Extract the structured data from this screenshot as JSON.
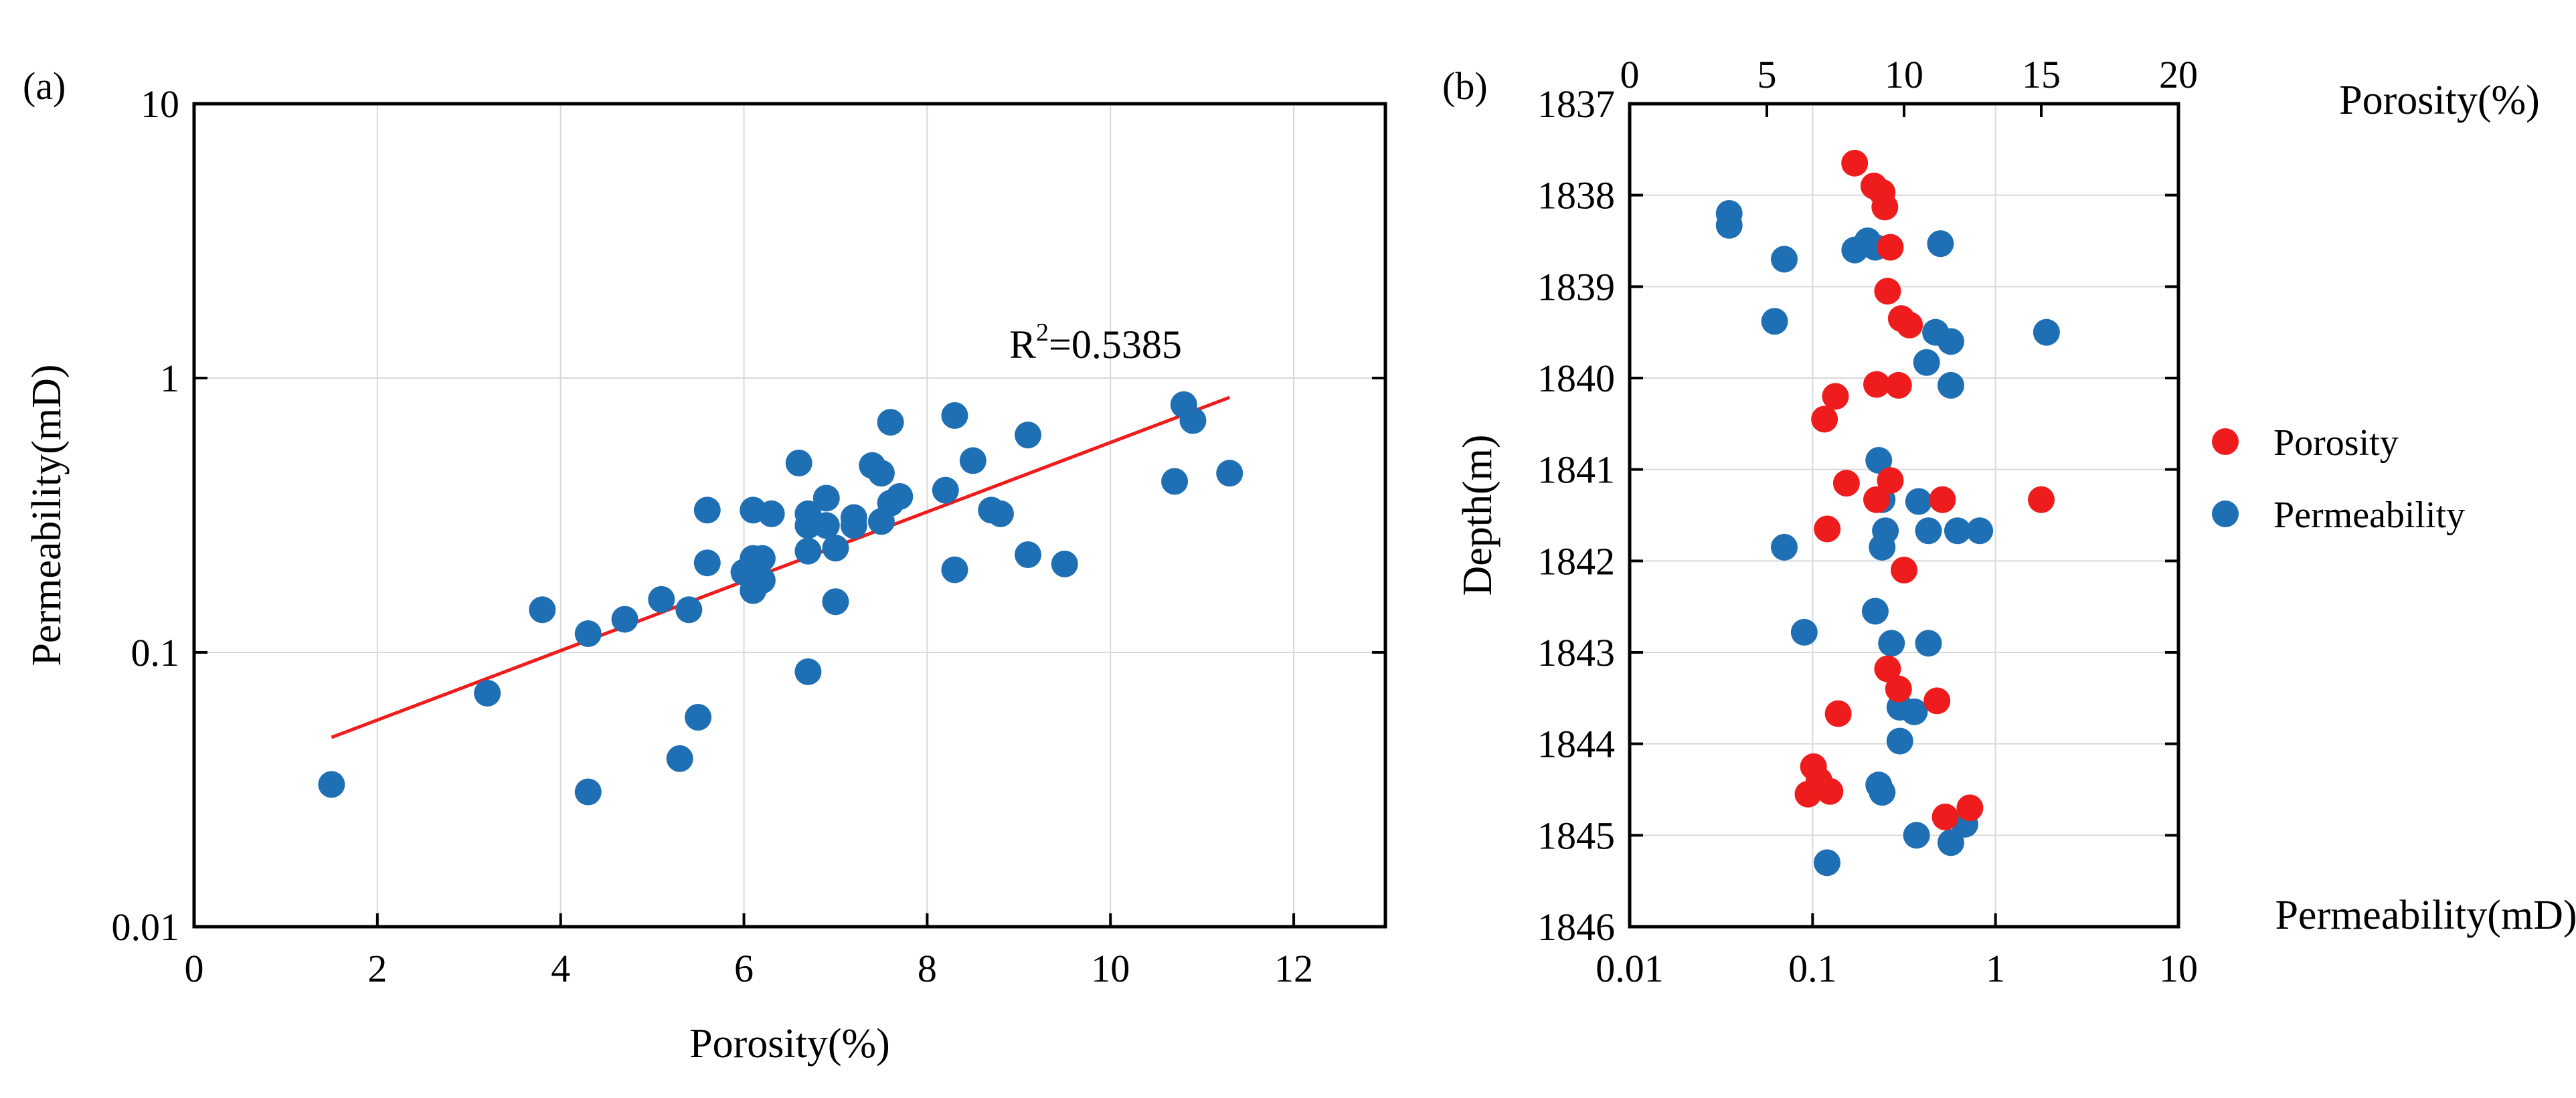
{
  "chart_data": [
    {
      "panel_label": "(a)",
      "type": "scatter",
      "xlabel": "Porosity(%)",
      "ylabel": "Permeability(mD)",
      "xlim": [
        0,
        13
      ],
      "ylim": [
        0.01,
        10
      ],
      "yscale": "log",
      "xticks": [
        0,
        2,
        4,
        6,
        8,
        10,
        12
      ],
      "xtick_labels": [
        "0",
        "2",
        "4",
        "6",
        "8",
        "10",
        "12"
      ],
      "yticks": [
        0.01,
        0.1,
        1,
        10
      ],
      "ytick_labels": [
        "0.01",
        "0.1",
        "1",
        "10"
      ],
      "grid": true,
      "series": [
        {
          "color": "#1f6fb4",
          "points": [
            [
              1.5,
              0.033
            ],
            [
              3.2,
              0.071
            ],
            [
              3.8,
              0.143
            ],
            [
              4.3,
              0.117
            ],
            [
              4.3,
              0.031
            ],
            [
              4.7,
              0.132
            ],
            [
              5.1,
              0.156
            ],
            [
              5.3,
              0.041
            ],
            [
              5.4,
              0.143
            ],
            [
              5.5,
              0.058
            ],
            [
              5.6,
              0.33
            ],
            [
              5.6,
              0.212
            ],
            [
              6.0,
              0.196
            ],
            [
              6.1,
              0.33
            ],
            [
              6.1,
              0.22
            ],
            [
              6.1,
              0.168
            ],
            [
              6.2,
              0.22
            ],
            [
              6.2,
              0.183
            ],
            [
              6.3,
              0.32
            ],
            [
              6.6,
              0.49
            ],
            [
              6.7,
              0.32
            ],
            [
              6.7,
              0.29
            ],
            [
              6.7,
              0.234
            ],
            [
              6.7,
              0.085
            ],
            [
              6.9,
              0.365
            ],
            [
              6.9,
              0.29
            ],
            [
              7.0,
              0.24
            ],
            [
              7.0,
              0.153
            ],
            [
              7.2,
              0.31
            ],
            [
              7.2,
              0.29
            ],
            [
              7.4,
              0.48
            ],
            [
              7.5,
              0.45
            ],
            [
              7.5,
              0.3
            ],
            [
              7.6,
              0.69
            ],
            [
              7.6,
              0.35
            ],
            [
              7.7,
              0.37
            ],
            [
              8.2,
              0.39
            ],
            [
              8.3,
              0.73
            ],
            [
              8.3,
              0.2
            ],
            [
              8.5,
              0.5
            ],
            [
              8.7,
              0.33
            ],
            [
              8.8,
              0.32
            ],
            [
              9.1,
              0.62
            ],
            [
              9.1,
              0.227
            ],
            [
              9.5,
              0.21
            ],
            [
              10.7,
              0.42
            ],
            [
              10.8,
              0.8
            ],
            [
              10.9,
              0.7
            ],
            [
              11.3,
              0.45
            ]
          ]
        }
      ],
      "trendline": {
        "color": "#ee1c1c",
        "from": [
          1.5,
          0.049
        ],
        "to": [
          11.3,
          0.85
        ]
      },
      "annotation": {
        "base": "R",
        "sup": "2",
        "rest": "=0.5385"
      }
    },
    {
      "panel_label": "(b)",
      "type": "scatter",
      "ylabel": "Depth(m)",
      "ylim": [
        1837,
        1846
      ],
      "yinverted": true,
      "yticks": [
        1837,
        1838,
        1839,
        1840,
        1841,
        1842,
        1843,
        1844,
        1845,
        1846
      ],
      "ytick_labels": [
        "1837",
        "1838",
        "1839",
        "1840",
        "1841",
        "1842",
        "1843",
        "1844",
        "1845",
        "1846"
      ],
      "top_axis": {
        "label": "Porosity(%)",
        "lim": [
          0,
          20
        ],
        "ticks": [
          0,
          5,
          10,
          15,
          20
        ],
        "tick_labels": [
          "0",
          "5",
          "10",
          "15",
          "20"
        ]
      },
      "bottom_axis": {
        "label": "Permeability(mD)",
        "lim": [
          0.01,
          10
        ],
        "scale": "log",
        "ticks": [
          0.01,
          0.1,
          1,
          10
        ],
        "tick_labels": [
          "0.01",
          "0.1",
          "1",
          "10"
        ]
      },
      "grid": true,
      "legend": {
        "position": "right",
        "entries": [
          "Porosity",
          "Permeability"
        ]
      },
      "series": [
        {
          "name": "Porosity",
          "axis": "top",
          "color": "#ee1c1c",
          "points": [
            [
              8.2,
              1837.65
            ],
            [
              8.9,
              1837.9
            ],
            [
              9.2,
              1837.97
            ],
            [
              9.3,
              1838.13
            ],
            [
              9.5,
              1838.57
            ],
            [
              9.4,
              1839.05
            ],
            [
              9.9,
              1839.35
            ],
            [
              10.2,
              1839.42
            ],
            [
              7.5,
              1840.2
            ],
            [
              9.0,
              1840.07
            ],
            [
              9.8,
              1840.08
            ],
            [
              7.1,
              1840.45
            ],
            [
              9.5,
              1841.12
            ],
            [
              7.9,
              1841.15
            ],
            [
              9.0,
              1841.33
            ],
            [
              11.4,
              1841.33
            ],
            [
              15.0,
              1841.33
            ],
            [
              7.2,
              1841.65
            ],
            [
              10.0,
              1842.1
            ],
            [
              9.4,
              1843.18
            ],
            [
              9.8,
              1843.4
            ],
            [
              11.2,
              1843.53
            ],
            [
              7.6,
              1843.67
            ],
            [
              6.7,
              1844.25
            ],
            [
              6.9,
              1844.4
            ],
            [
              7.3,
              1844.52
            ],
            [
              6.5,
              1844.55
            ],
            [
              12.4,
              1844.7
            ],
            [
              11.5,
              1844.8
            ]
          ]
        },
        {
          "name": "Permeability",
          "axis": "bottom",
          "color": "#1f6fb4",
          "points": [
            [
              0.035,
              1838.2
            ],
            [
              0.035,
              1838.33
            ],
            [
              0.2,
              1838.5
            ],
            [
              0.22,
              1838.57
            ],
            [
              0.17,
              1838.6
            ],
            [
              0.5,
              1838.53
            ],
            [
              0.07,
              1838.7
            ],
            [
              0.062,
              1839.38
            ],
            [
              0.47,
              1839.5
            ],
            [
              0.57,
              1839.6
            ],
            [
              1.9,
              1839.5
            ],
            [
              0.42,
              1839.83
            ],
            [
              0.57,
              1840.08
            ],
            [
              0.23,
              1840.9
            ],
            [
              0.24,
              1841.33
            ],
            [
              0.38,
              1841.35
            ],
            [
              0.25,
              1841.67
            ],
            [
              0.43,
              1841.67
            ],
            [
              0.62,
              1841.67
            ],
            [
              0.82,
              1841.67
            ],
            [
              0.24,
              1841.85
            ],
            [
              0.07,
              1841.85
            ],
            [
              0.22,
              1842.55
            ],
            [
              0.09,
              1842.78
            ],
            [
              0.27,
              1842.9
            ],
            [
              0.43,
              1842.9
            ],
            [
              0.3,
              1843.6
            ],
            [
              0.36,
              1843.65
            ],
            [
              0.3,
              1843.97
            ],
            [
              0.23,
              1844.45
            ],
            [
              0.24,
              1844.53
            ],
            [
              0.68,
              1844.88
            ],
            [
              0.37,
              1845.0
            ],
            [
              0.57,
              1845.08
            ],
            [
              0.12,
              1845.3
            ]
          ]
        }
      ]
    }
  ]
}
